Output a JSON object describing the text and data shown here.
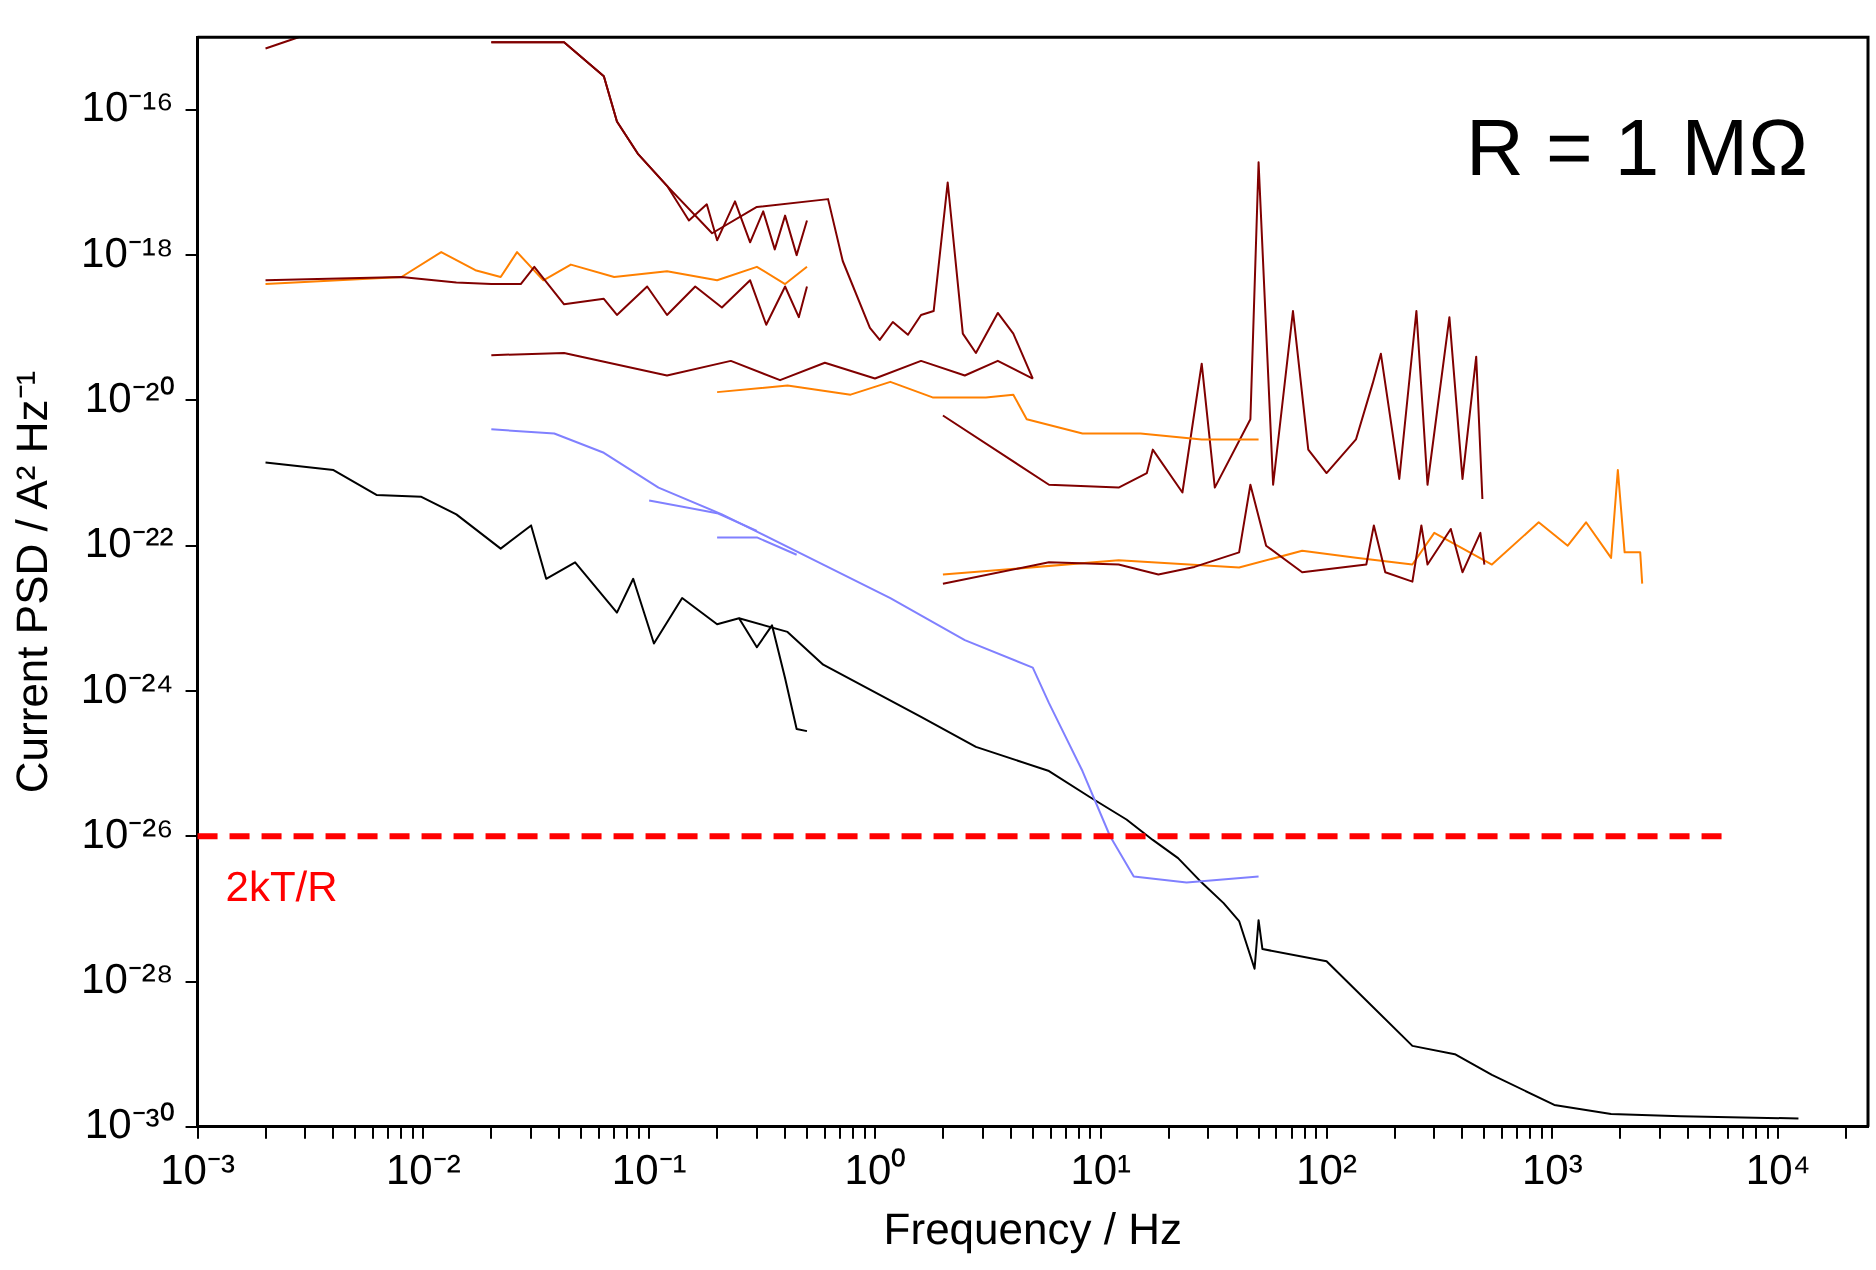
{
  "chart_data": {
    "type": "line",
    "xlabel": "Frequency / Hz",
    "ylabel": "Current PSD / A² Hz⁻¹",
    "log": "xy",
    "grid": false,
    "legend": false,
    "marker": "none",
    "xlim": [
      0.001,
      25000
    ],
    "ylim": [
      1e-30,
      1e-15
    ],
    "xticks": [
      {
        "value": 0.001,
        "label": "10⁻³"
      },
      {
        "value": 0.002,
        "label": null
      },
      {
        "value": 0.003,
        "label": null
      },
      {
        "value": 0.004,
        "label": null
      },
      {
        "value": 0.005,
        "label": null
      },
      {
        "value": 0.006,
        "label": null
      },
      {
        "value": 0.007,
        "label": null
      },
      {
        "value": 0.008,
        "label": null
      },
      {
        "value": 0.009,
        "label": null
      },
      {
        "value": 0.01,
        "label": "10⁻²"
      },
      {
        "value": 0.02,
        "label": null
      },
      {
        "value": 0.03,
        "label": null
      },
      {
        "value": 0.04,
        "label": null
      },
      {
        "value": 0.05,
        "label": null
      },
      {
        "value": 0.06,
        "label": null
      },
      {
        "value": 0.07,
        "label": null
      },
      {
        "value": 0.08,
        "label": null
      },
      {
        "value": 0.09,
        "label": null
      },
      {
        "value": 0.1,
        "label": "10⁻¹"
      },
      {
        "value": 0.2,
        "label": null
      },
      {
        "value": 0.3,
        "label": null
      },
      {
        "value": 0.4,
        "label": null
      },
      {
        "value": 0.5,
        "label": null
      },
      {
        "value": 0.6,
        "label": null
      },
      {
        "value": 0.7,
        "label": null
      },
      {
        "value": 0.8,
        "label": null
      },
      {
        "value": 0.9,
        "label": null
      },
      {
        "value": 1,
        "label": "10⁰"
      },
      {
        "value": 2,
        "label": null
      },
      {
        "value": 3,
        "label": null
      },
      {
        "value": 4,
        "label": null
      },
      {
        "value": 5,
        "label": null
      },
      {
        "value": 6,
        "label": null
      },
      {
        "value": 7,
        "label": null
      },
      {
        "value": 8,
        "label": null
      },
      {
        "value": 9,
        "label": null
      },
      {
        "value": 10,
        "label": "10¹"
      },
      {
        "value": 20,
        "label": null
      },
      {
        "value": 30,
        "label": null
      },
      {
        "value": 40,
        "label": null
      },
      {
        "value": 50,
        "label": null
      },
      {
        "value": 60,
        "label": null
      },
      {
        "value": 70,
        "label": null
      },
      {
        "value": 80,
        "label": null
      },
      {
        "value": 90,
        "label": null
      },
      {
        "value": 100,
        "label": "10²"
      },
      {
        "value": 200,
        "label": null
      },
      {
        "value": 300,
        "label": null
      },
      {
        "value": 400,
        "label": null
      },
      {
        "value": 500,
        "label": null
      },
      {
        "value": 600,
        "label": null
      },
      {
        "value": 700,
        "label": null
      },
      {
        "value": 800,
        "label": null
      },
      {
        "value": 900,
        "label": null
      },
      {
        "value": 1000,
        "label": "10³"
      },
      {
        "value": 2000,
        "label": null
      },
      {
        "value": 3000,
        "label": null
      },
      {
        "value": 4000,
        "label": null
      },
      {
        "value": 5000,
        "label": null
      },
      {
        "value": 6000,
        "label": null
      },
      {
        "value": 7000,
        "label": null
      },
      {
        "value": 8000,
        "label": null
      },
      {
        "value": 9000,
        "label": null
      },
      {
        "value": 10000,
        "label": "10⁴"
      },
      {
        "value": 20000,
        "label": null
      }
    ],
    "yticks": [
      {
        "value": 1e-30,
        "label": "10⁻³⁰"
      },
      {
        "value": 1e-28,
        "label": "10⁻²⁸"
      },
      {
        "value": 1e-26,
        "label": "10⁻²⁶"
      },
      {
        "value": 1e-24,
        "label": "10⁻²⁴"
      },
      {
        "value": 1e-22,
        "label": "10⁻²²"
      },
      {
        "value": 1e-20,
        "label": "10⁻²⁰"
      },
      {
        "value": 1e-18,
        "label": "10⁻¹⁸"
      },
      {
        "value": 1e-16,
        "label": "10⁻¹⁶"
      }
    ],
    "series": [
      {
        "color": "#800000",
        "x": [
          0.002,
          0.0028,
          0.005,
          0.02,
          0.042,
          0.063,
          0.072,
          0.089,
          0.12,
          0.15,
          0.18,
          0.2,
          0.24,
          0.28,
          0.32,
          0.36,
          0.4,
          0.45,
          0.5
        ],
        "values": [
          7e-16,
          1e-15,
          null,
          8.5e-16,
          8.5e-16,
          2.9e-16,
          6.9e-17,
          2.5e-17,
          9e-18,
          3e-18,
          5e-18,
          1.6e-18,
          5.5e-18,
          1.5e-18,
          4e-18,
          1.2e-18,
          3.5e-18,
          1e-18,
          3e-18
        ]
      },
      {
        "color": "#800000",
        "x": [
          0.02,
          0.042,
          0.063,
          0.072,
          0.089,
          0.12,
          0.19,
          0.3,
          0.62,
          0.72,
          0.95,
          1.05,
          1.2,
          1.4,
          1.6,
          1.82,
          2.1,
          2.45,
          2.8,
          3.5,
          4.1,
          5
        ],
        "values": [
          8.5e-16,
          8.5e-16,
          2.9e-16,
          6.9e-17,
          2.5e-17,
          9e-18,
          2e-18,
          4.6e-18,
          5.9e-18,
          8.3e-19,
          1e-19,
          6.8e-20,
          1.2e-19,
          8e-20,
          1.5e-19,
          1.7e-19,
          1e-17,
          8.3e-20,
          4.5e-20,
          1.6e-19,
          8.3e-20,
          2e-20
        ]
      },
      {
        "color": "#800000",
        "x": [
          0.002,
          0.008,
          0.014,
          0.02,
          0.027,
          0.031,
          0.042,
          0.063,
          0.072,
          0.098,
          0.12,
          0.16,
          0.21,
          0.28,
          0.33,
          0.4,
          0.46,
          0.5
        ],
        "values": [
          4.5e-19,
          5e-19,
          4.2e-19,
          4e-19,
          4e-19,
          6.9e-19,
          2.1e-19,
          2.5e-19,
          1.5e-19,
          3.7e-19,
          1.5e-19,
          3.7e-19,
          1.9e-19,
          4.5e-19,
          1.1e-19,
          3.7e-19,
          1.4e-19,
          3.7e-19
        ]
      },
      {
        "color": "#ff8000",
        "x": [
          0.002,
          0.008,
          0.012,
          0.017,
          0.022,
          0.026,
          0.034,
          0.045,
          0.07,
          0.12,
          0.2,
          0.3,
          0.4,
          0.5
        ],
        "values": [
          4e-19,
          5e-19,
          1.1e-18,
          6.2e-19,
          5e-19,
          1.1e-18,
          4.5e-19,
          7.4e-19,
          5e-19,
          6e-19,
          4.5e-19,
          6.9e-19,
          4e-19,
          6.9e-19
        ]
      },
      {
        "color": "#800000",
        "x": [
          0.02,
          0.042,
          0.12,
          0.23,
          0.38,
          0.6,
          1,
          1.6,
          2.5,
          3.5,
          5
        ],
        "values": [
          4.2e-20,
          4.5e-20,
          2.2e-20,
          3.5e-20,
          1.9e-20,
          3.3e-20,
          2e-20,
          3.5e-20,
          2.2e-20,
          3.5e-20,
          2e-20
        ]
      },
      {
        "color": "#ff8000",
        "x": [
          0.2,
          0.41,
          0.78,
          1.17,
          1.8,
          3.1,
          4.1,
          4.7,
          8.3,
          15,
          28,
          50
        ],
        "values": [
          1.3e-20,
          1.6e-20,
          1.2e-20,
          1.8e-20,
          1.1e-20,
          1.1e-20,
          1.2e-20,
          5.5e-21,
          3.5e-21,
          3.5e-21,
          2.9e-21,
          2.9e-21
        ]
      },
      {
        "color": "#800000",
        "x": [
          2,
          5.9,
          12,
          16,
          17,
          23,
          28,
          32,
          46,
          50,
          58,
          71,
          83,
          100,
          135,
          160,
          174,
          210,
          250,
          280,
          350,
          400,
          460,
          490
        ],
        "values": [
          6.2e-21,
          6.9e-22,
          6.3e-22,
          1e-21,
          2.1e-21,
          5.4e-22,
          3.2e-20,
          6.3e-22,
          5.5e-21,
          1.9e-17,
          6.9e-22,
          1.7e-19,
          2.1e-21,
          1e-21,
          2.9e-21,
          1.7e-20,
          4.4e-20,
          8.3e-22,
          1.7e-19,
          6.9e-22,
          1.4e-19,
          8.3e-22,
          4e-20,
          4.4e-22
        ]
      },
      {
        "color": "#800000",
        "x": [
          2,
          5.9,
          12,
          18,
          26,
          41,
          46,
          54,
          78,
          150,
          162,
          182,
          240,
          263,
          280,
          355,
          400,
          480,
          500
        ],
        "values": [
          3e-23,
          5.9e-23,
          5.5e-23,
          4e-23,
          5.1e-23,
          8.1e-23,
          6.9e-22,
          1e-22,
          4.3e-23,
          5.5e-23,
          1.9e-22,
          4.3e-23,
          3.2e-23,
          1.9e-22,
          5.5e-23,
          1.7e-22,
          4.3e-23,
          1.5e-22,
          5.5e-23
        ]
      },
      {
        "color": "#ff8000",
        "x": [
          2,
          12,
          41,
          78,
          135,
          240,
          300,
          540,
          870,
          1170,
          1410,
          1820,
          1950,
          2090,
          2450,
          2500
        ],
        "values": [
          4e-23,
          6.3e-23,
          5e-23,
          8.5e-23,
          6.8e-23,
          5.5e-23,
          1.5e-22,
          5.5e-23,
          2.1e-22,
          1e-22,
          2.1e-22,
          6.8e-23,
          1.1e-21,
          8.1e-23,
          8.1e-23,
          3e-23
        ]
      },
      {
        "color": "#8080ff",
        "x": [
          0.02,
          0.038,
          0.063,
          0.11,
          0.21,
          0.59,
          1.17,
          2.5,
          5,
          5.9,
          8.3,
          11,
          14,
          24,
          50
        ],
        "values": [
          4e-21,
          3.5e-21,
          1.9e-21,
          6.3e-22,
          2.7e-22,
          5.5e-23,
          1.9e-23,
          5e-24,
          2.1e-24,
          6.8e-25,
          7.9e-26,
          1e-26,
          2.8e-27,
          2.3e-27,
          2.8e-27
        ]
      },
      {
        "color": "#8080ff",
        "x": [
          0.1,
          0.2,
          0.3
        ],
        "values": [
          4.2e-22,
          2.8e-22,
          1.6e-22
        ]
      },
      {
        "color": "#8080ff",
        "x": [
          0.2,
          0.3,
          0.45
        ],
        "values": [
          1.3e-22,
          1.3e-22,
          7.5e-23
        ]
      },
      {
        "color": "#000000",
        "x": [
          0.002,
          0.004,
          0.0062,
          0.0098,
          0.014,
          0.022,
          0.03,
          0.035,
          0.047,
          0.072,
          0.085,
          0.105,
          0.14,
          0.2,
          0.25,
          0.3,
          0.35,
          0.4,
          0.45,
          0.5
        ],
        "values": [
          1.4e-21,
          1.1e-21,
          5e-22,
          4.7e-22,
          2.7e-22,
          9.1e-23,
          1.9e-22,
          3.5e-23,
          5.9e-23,
          1.2e-23,
          3.5e-23,
          4.5e-24,
          1.9e-23,
          8.3e-24,
          1e-23,
          4e-24,
          8e-24,
          1.5e-24,
          3e-25,
          2.8e-25
        ]
      },
      {
        "color": "#000000",
        "x": [
          0.25,
          0.41,
          0.59,
          1.6,
          2.8,
          5.9,
          8.9,
          13,
          17,
          22,
          28,
          35,
          41,
          48,
          50,
          52,
          100,
          240,
          370,
          540,
          1020,
          1820,
          3700,
          12300
        ],
        "values": [
          1e-23,
          6.5e-24,
          2.3e-24,
          4.4e-25,
          1.7e-25,
          7.9e-26,
          3.5e-26,
          1.7e-26,
          8.9e-27,
          5e-27,
          2.3e-27,
          1.2e-27,
          6.8e-28,
          1.5e-28,
          7e-28,
          2.8e-28,
          1.9e-28,
          1.3e-29,
          1e-29,
          5.2e-30,
          2e-30,
          1.5e-30,
          1.4e-30,
          1.3e-30
        ]
      }
    ],
    "ref_lines": [
      {
        "axis": "y",
        "value": 1e-26,
        "label": "2kT/R",
        "color": "#ff0000",
        "line_style": "dashed"
      }
    ],
    "annotations": [
      "R = 1 MΩ"
    ]
  }
}
